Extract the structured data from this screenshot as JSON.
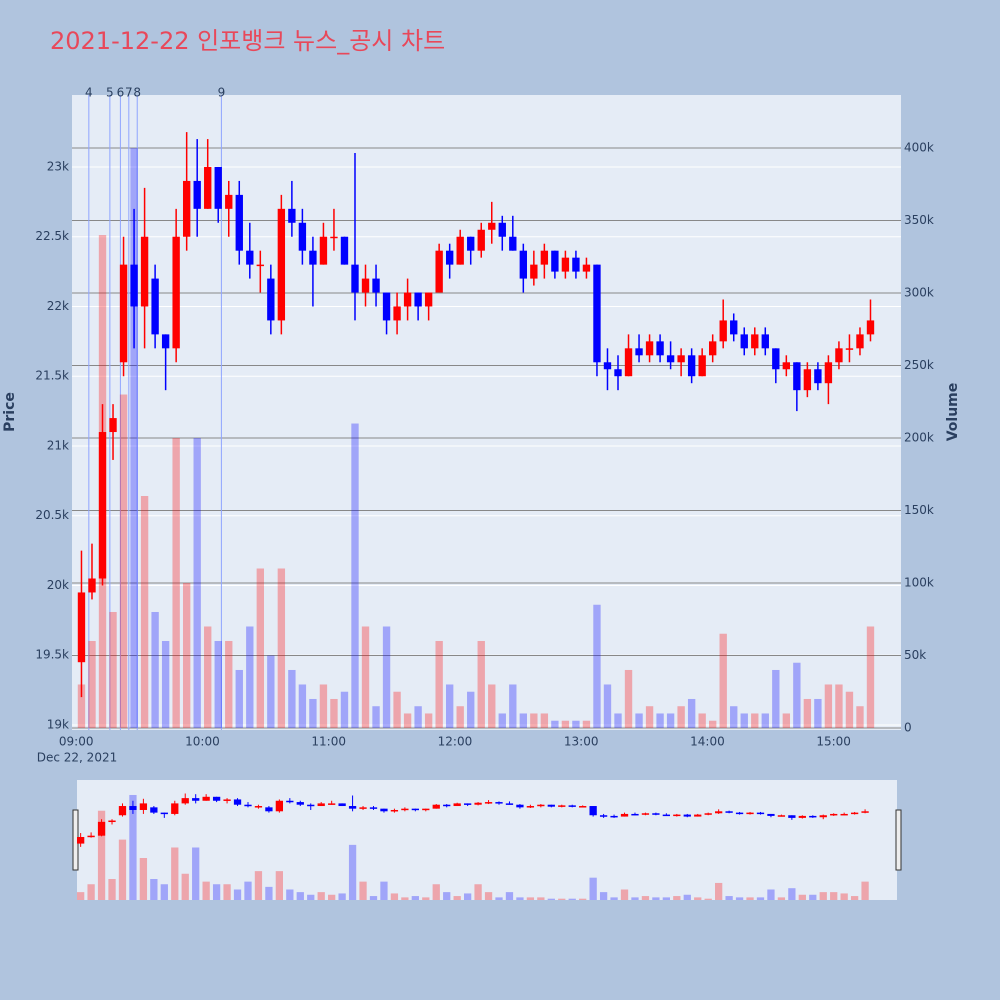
{
  "chart_data": {
    "type": "candlestick",
    "title": "2021-12-22 인포뱅크 뉴스_공시 차트",
    "y_label": "Price",
    "y2_label": "Volume",
    "x_date_label": "Dec 22, 2021",
    "increasing_color": "#ff0000",
    "decreasing_color": "#0000ff",
    "grid": true,
    "xlim": [
      "08:58",
      "15:32"
    ],
    "xticks": [
      "09:00",
      "10:00",
      "11:00",
      "12:00",
      "13:00",
      "14:00",
      "15:00"
    ],
    "ylim": [
      18964,
      23516
    ],
    "yticks": [
      {
        "value": 19000,
        "label": "19k"
      },
      {
        "value": 19500,
        "label": "19.5k"
      },
      {
        "value": 20000,
        "label": "20k"
      },
      {
        "value": 20500,
        "label": "20.5k"
      },
      {
        "value": 21000,
        "label": "21k"
      },
      {
        "value": 21500,
        "label": "21.5k"
      },
      {
        "value": 22000,
        "label": "22k"
      },
      {
        "value": 22500,
        "label": "22.5k"
      },
      {
        "value": 23000,
        "label": "23k"
      }
    ],
    "y2lim": [
      -1400,
      436600
    ],
    "y2ticks": [
      0,
      {
        "value": 50000,
        "label": "50k"
      },
      {
        "value": 100000,
        "label": "100k"
      },
      {
        "value": 150000,
        "label": "150k"
      },
      {
        "value": 200000,
        "label": "200k"
      },
      {
        "value": 250000,
        "label": "250k"
      },
      {
        "value": 300000,
        "label": "300k"
      },
      {
        "value": 350000,
        "label": "350k"
      },
      {
        "value": 400000,
        "label": "400k"
      }
    ],
    "markers": [
      {
        "x": "09:06",
        "label": "4"
      },
      {
        "x": "09:16",
        "label": "5"
      },
      {
        "x": "09:21",
        "label": "6"
      },
      {
        "x": "09:25",
        "label": "7"
      },
      {
        "x": "09:29",
        "label": "8"
      },
      {
        "x": "10:09",
        "label": "9"
      }
    ],
    "x": [
      "09:00",
      "09:05",
      "09:10",
      "09:15",
      "09:20",
      "09:25",
      "09:30",
      "09:35",
      "09:40",
      "09:45",
      "09:50",
      "09:55",
      "10:00",
      "10:05",
      "10:10",
      "10:15",
      "10:20",
      "10:25",
      "10:30",
      "10:35",
      "10:40",
      "10:45",
      "10:50",
      "10:55",
      "11:00",
      "11:05",
      "11:10",
      "11:15",
      "11:20",
      "11:25",
      "11:30",
      "11:35",
      "11:40",
      "11:45",
      "11:50",
      "11:55",
      "12:00",
      "12:05",
      "12:10",
      "12:15",
      "12:20",
      "12:25",
      "12:30",
      "12:35",
      "12:40",
      "12:45",
      "12:50",
      "12:55",
      "13:00",
      "13:05",
      "13:10",
      "13:15",
      "13:20",
      "13:25",
      "13:30",
      "13:35",
      "13:40",
      "13:45",
      "13:50",
      "13:55",
      "14:00",
      "14:05",
      "14:10",
      "14:15",
      "14:20",
      "14:25",
      "14:30",
      "14:35",
      "14:40",
      "14:45",
      "14:50",
      "14:55",
      "15:00",
      "15:05",
      "15:10",
      "15:15"
    ],
    "open": [
      19450,
      19950,
      20050,
      21100,
      21600,
      22300,
      22000,
      22200,
      21800,
      21700,
      22500,
      22900,
      22700,
      23000,
      22700,
      22800,
      22400,
      22300,
      22200,
      21900,
      22700,
      22600,
      22400,
      22300,
      22500,
      22500,
      22300,
      22100,
      22200,
      22100,
      21900,
      22000,
      22100,
      22000,
      22100,
      22400,
      22300,
      22500,
      22400,
      22550,
      22600,
      22500,
      22400,
      22200,
      22300,
      22400,
      22250,
      22350,
      22250,
      22300,
      21600,
      21550,
      21500,
      21700,
      21650,
      21750,
      21650,
      21600,
      21650,
      21500,
      21650,
      21750,
      21900,
      21800,
      21700,
      21800,
      21700,
      21550,
      21600,
      21400,
      21550,
      21450,
      21600,
      21700,
      21700,
      21800
    ],
    "high": [
      20250,
      20300,
      21300,
      21300,
      22500,
      22700,
      22850,
      22300,
      21800,
      22700,
      23250,
      23200,
      23200,
      23000,
      22900,
      22900,
      22600,
      22400,
      22300,
      22800,
      22900,
      22700,
      22500,
      22600,
      22700,
      22500,
      23100,
      22300,
      22300,
      22100,
      22100,
      22200,
      22100,
      22100,
      22450,
      22450,
      22550,
      22500,
      22600,
      22750,
      22650,
      22650,
      22450,
      22400,
      22450,
      22400,
      22400,
      22400,
      22350,
      22300,
      21700,
      21650,
      21800,
      21800,
      21800,
      21800,
      21750,
      21700,
      21700,
      21700,
      21800,
      22050,
      21950,
      21850,
      21850,
      21850,
      21700,
      21650,
      21600,
      21600,
      21600,
      21650,
      21750,
      21800,
      21850,
      22050
    ],
    "low": [
      19200,
      19900,
      20000,
      20900,
      21500,
      21700,
      21700,
      21700,
      21400,
      21600,
      22400,
      22500,
      22700,
      22600,
      22500,
      22300,
      22200,
      22100,
      21800,
      21800,
      22500,
      22300,
      22000,
      22300,
      22400,
      22300,
      21900,
      22000,
      22000,
      21800,
      21800,
      21900,
      21900,
      21900,
      22100,
      22200,
      22300,
      22300,
      22350,
      22450,
      22400,
      22400,
      22100,
      22150,
      22200,
      22200,
      22200,
      22200,
      22200,
      21500,
      21400,
      21400,
      21500,
      21600,
      21600,
      21600,
      21550,
      21500,
      21450,
      21500,
      21600,
      21700,
      21750,
      21650,
      21650,
      21650,
      21450,
      21500,
      21250,
      21350,
      21400,
      21300,
      21550,
      21600,
      21650,
      21750
    ],
    "close": [
      19950,
      20050,
      21100,
      21200,
      22300,
      22000,
      22500,
      21800,
      21700,
      22500,
      22900,
      22700,
      23000,
      22700,
      22800,
      22400,
      22300,
      22300,
      21900,
      22700,
      22600,
      22400,
      22300,
      22500,
      22500,
      22300,
      22100,
      22200,
      22100,
      21900,
      22000,
      22100,
      22000,
      22100,
      22400,
      22300,
      22500,
      22400,
      22550,
      22600,
      22500,
      22400,
      22200,
      22300,
      22400,
      22250,
      22350,
      22250,
      22300,
      21600,
      21550,
      21500,
      21700,
      21650,
      21750,
      21650,
      21600,
      21650,
      21500,
      21650,
      21750,
      21900,
      21800,
      21700,
      21800,
      21700,
      21550,
      21600,
      21400,
      21550,
      21450,
      21600,
      21700,
      21700,
      21800,
      21900
    ],
    "volume": [
      30000,
      60000,
      340000,
      80000,
      230000,
      400000,
      160000,
      80000,
      60000,
      200000,
      100000,
      200000,
      70000,
      60000,
      60000,
      40000,
      70000,
      110000,
      50000,
      110000,
      40000,
      30000,
      20000,
      30000,
      20000,
      25000,
      210000,
      70000,
      15000,
      70000,
      25000,
      10000,
      15000,
      10000,
      60000,
      30000,
      15000,
      25000,
      60000,
      30000,
      10000,
      30000,
      10000,
      10000,
      10000,
      5000,
      5000,
      5000,
      5000,
      85000,
      30000,
      10000,
      40000,
      10000,
      15000,
      10000,
      10000,
      15000,
      20000,
      10000,
      5000,
      65000,
      15000,
      10000,
      10000,
      10000,
      40000,
      10000,
      45000,
      20000,
      20000,
      30000,
      30000,
      25000,
      15000,
      70000
    ]
  }
}
